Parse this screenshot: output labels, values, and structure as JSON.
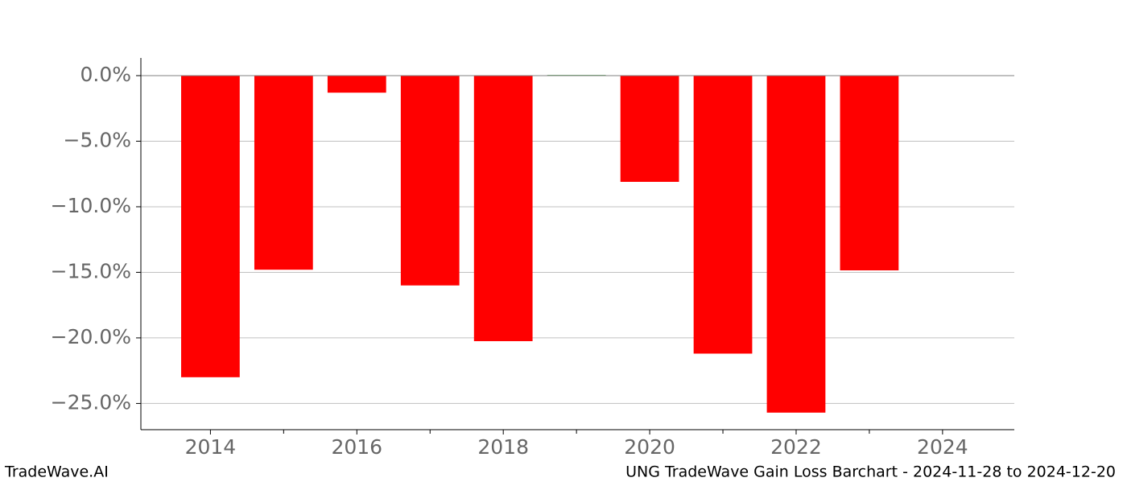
{
  "chart_data": {
    "type": "bar",
    "x": [
      2014,
      2015,
      2016,
      2017,
      2018,
      2019,
      2020,
      2021,
      2022,
      2023
    ],
    "values": [
      -23.0,
      -14.8,
      -1.3,
      -16.0,
      -20.25,
      0.05,
      -8.1,
      -21.2,
      -25.7,
      -14.85
    ],
    "colors": [
      "#ff0000",
      "#ff0000",
      "#ff0000",
      "#ff0000",
      "#ff0000",
      "#228b22",
      "#ff0000",
      "#ff0000",
      "#ff0000",
      "#ff0000"
    ],
    "xlim": [
      2013.05,
      2024.98
    ],
    "xticks": [
      2014,
      2016,
      2018,
      2020,
      2022,
      2024
    ],
    "x_minor_ticks": [
      2015,
      2017,
      2019,
      2021,
      2023
    ],
    "ylim": [
      -27.0,
      1.35
    ],
    "yticks": [
      {
        "value": 0,
        "label": "0.0%"
      },
      {
        "value": -5,
        "label": "−5.0%"
      },
      {
        "value": -10,
        "label": "−10.0%"
      },
      {
        "value": -15,
        "label": "−15.0%"
      },
      {
        "value": -20,
        "label": "−20.0%"
      },
      {
        "value": -25,
        "label": "−25.0%"
      }
    ],
    "grid": true,
    "footer_left": "TradeWave.AI",
    "footer_right": "UNG TradeWave Gain Loss Barchart - 2024-11-28 to 2024-12-20"
  }
}
